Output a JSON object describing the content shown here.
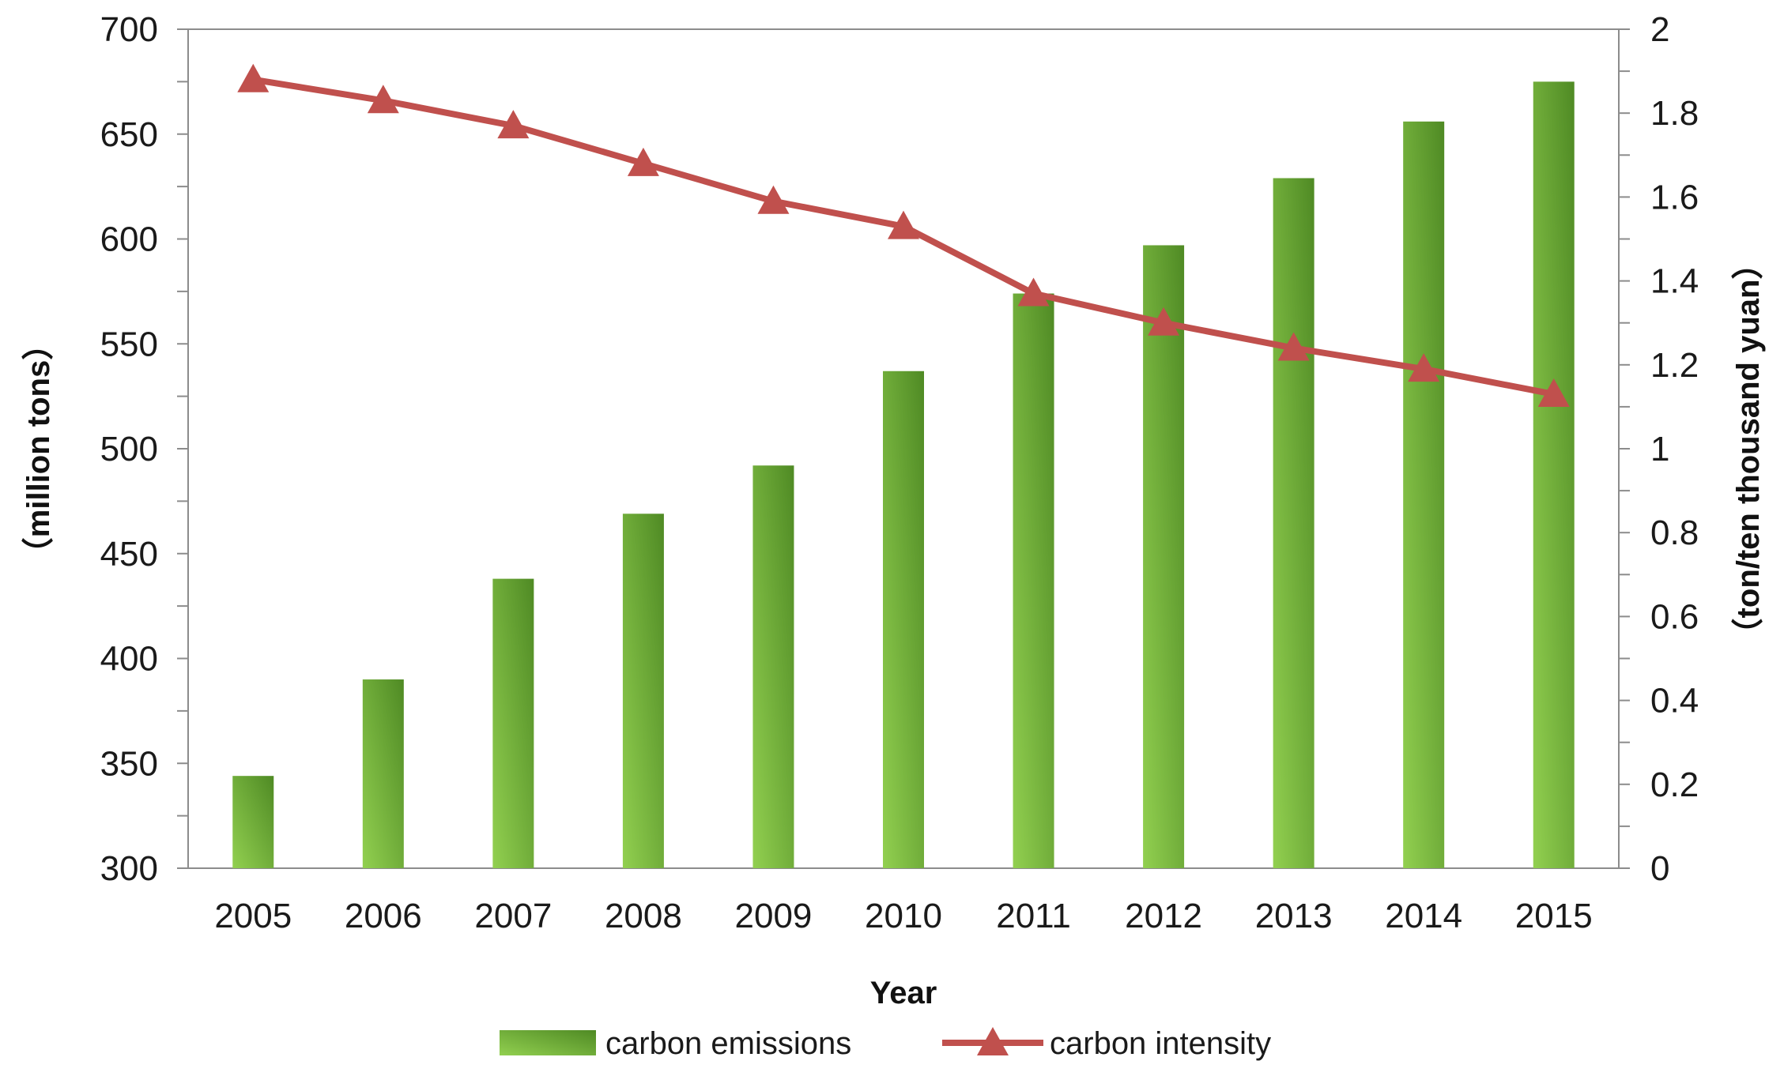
{
  "chart_data": {
    "type": "bar",
    "categories": [
      "2005",
      "2006",
      "2007",
      "2008",
      "2009",
      "2010",
      "2011",
      "2012",
      "2013",
      "2014",
      "2015"
    ],
    "series": [
      {
        "name": "carbon emissions",
        "type": "bar",
        "axis": "left",
        "values": [
          344,
          390,
          438,
          469,
          492,
          537,
          574,
          597,
          629,
          656,
          675
        ]
      },
      {
        "name": "carbon intensity",
        "type": "line",
        "axis": "right",
        "marker": "triangle",
        "values": [
          1.88,
          1.83,
          1.77,
          1.68,
          1.59,
          1.53,
          1.37,
          1.3,
          1.24,
          1.19,
          1.13
        ]
      }
    ],
    "xlabel": "Year",
    "ylabel_left": "（million tons）",
    "ylabel_right": "（ton/ten thousand yuan）",
    "ylim_left": [
      300,
      700
    ],
    "yticks_left": [
      "300",
      "350",
      "400",
      "450",
      "500",
      "550",
      "600",
      "650",
      "700"
    ],
    "ylim_right": [
      0,
      2
    ],
    "yticks_right": [
      "0",
      "0.2",
      "0.4",
      "0.6",
      "0.8",
      "1",
      "1.2",
      "1.4",
      "1.6",
      "1.8",
      "2"
    ],
    "legend_position": "bottom",
    "grid": false,
    "colors": {
      "bar_light": "#92d050",
      "bar_dark": "#4f8a24",
      "line": "#c0504d",
      "axis": "#8c8c8c"
    }
  }
}
